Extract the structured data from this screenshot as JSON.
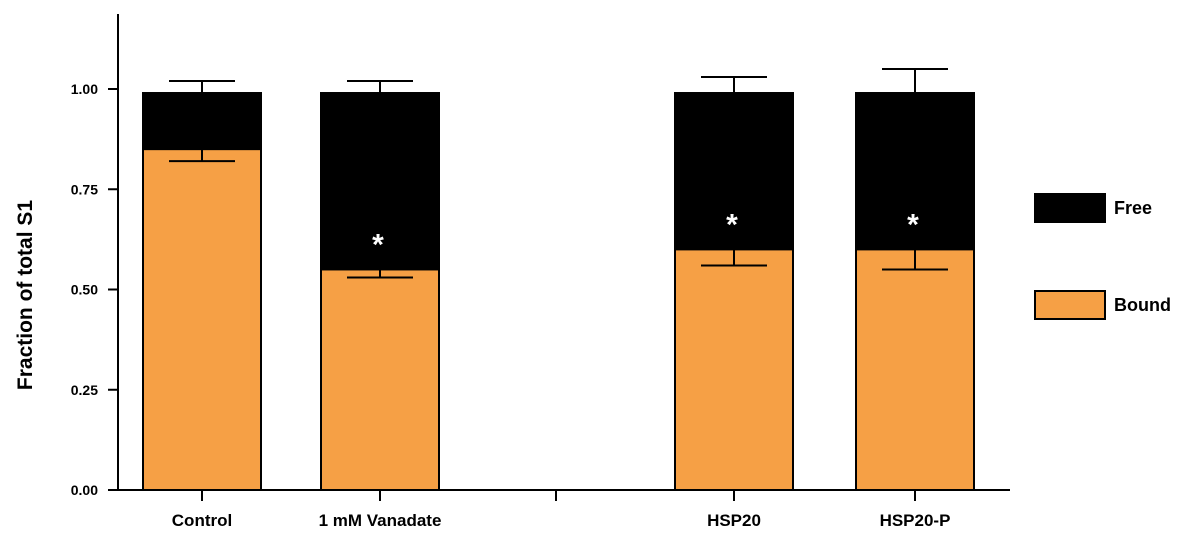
{
  "chart_data": {
    "type": "bar",
    "stacked": true,
    "title": "",
    "xlabel": "",
    "ylabel": "Fraction of total S1",
    "ylim": [
      0,
      1.2
    ],
    "yticks": [
      "0.00",
      "0.25",
      "0.50",
      "0.75",
      "1.00"
    ],
    "ytick_values": [
      0,
      0.25,
      0.5,
      0.75,
      1.0
    ],
    "grid": false,
    "legend_placement": "right",
    "categories": [
      "Control",
      "1 mM  Vanadate",
      "HSP20",
      "HSP20-P"
    ],
    "gap_after_category_index": 1,
    "series": [
      {
        "name": "Bound",
        "color": "#f6a045",
        "values": [
          0.85,
          0.55,
          0.6,
          0.6
        ],
        "error": [
          0.03,
          0.02,
          0.04,
          0.05
        ]
      },
      {
        "name": "Free",
        "color": "#000000",
        "values": [
          0.14,
          0.44,
          0.39,
          0.39
        ],
        "error": [
          0.03,
          0.03,
          0.04,
          0.06
        ]
      }
    ],
    "annotations": [
      "",
      "*",
      "*",
      "*"
    ]
  }
}
